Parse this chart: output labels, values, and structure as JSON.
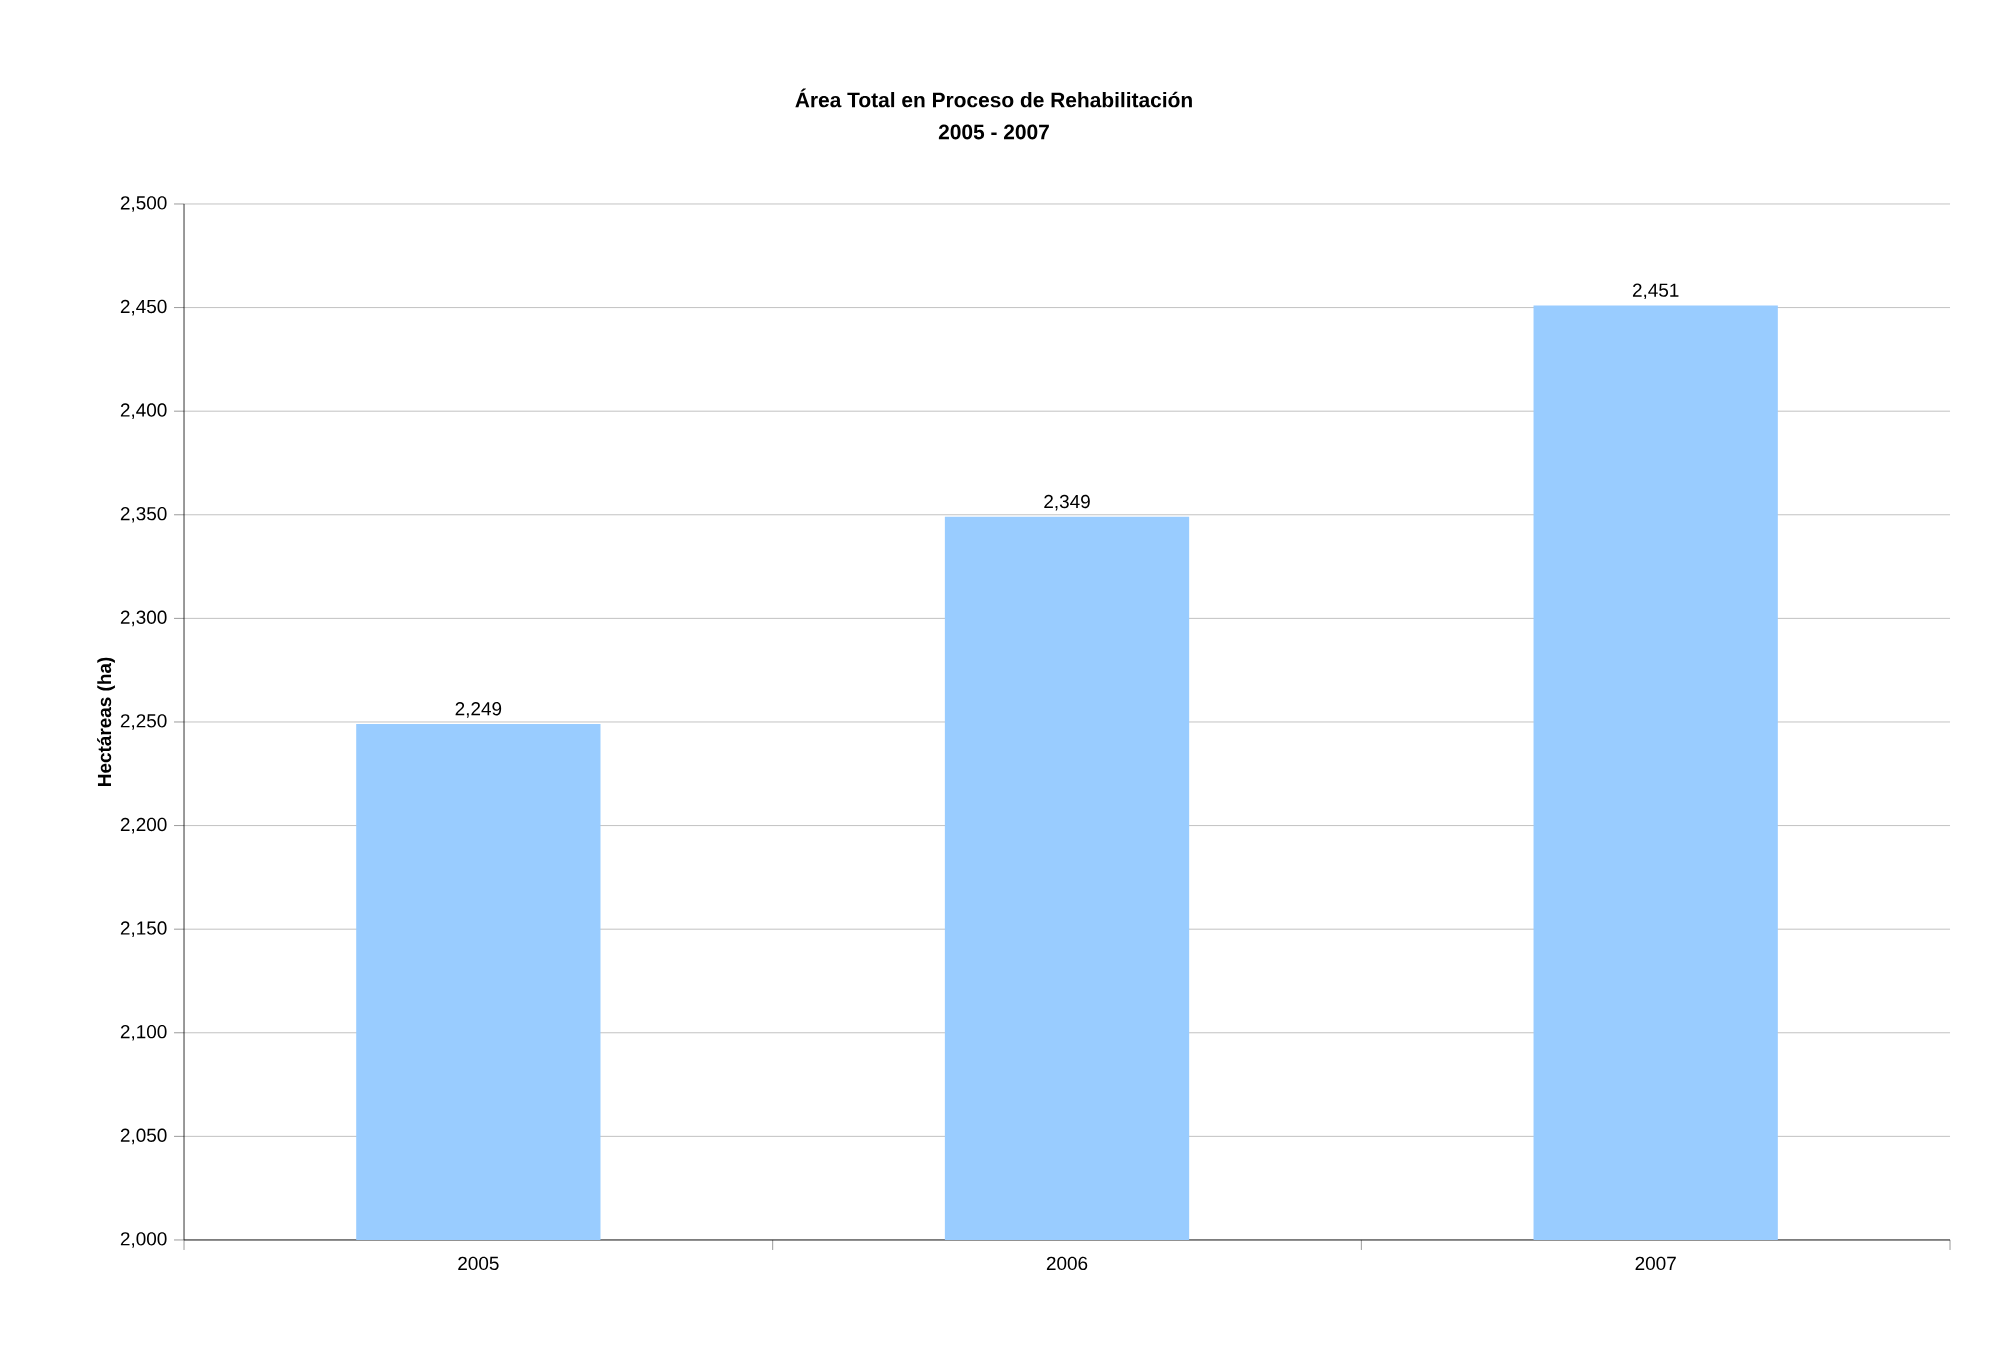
{
  "chart_data": {
    "type": "bar",
    "title": "Área Total en Proceso de Rehabilitación",
    "subtitle": "2005 - 2007",
    "ylabel": "Hectáreas (ha)",
    "categories": [
      "2005",
      "2006",
      "2007"
    ],
    "values": [
      2249,
      2349,
      2451
    ],
    "value_labels": [
      "2,249",
      "2,349",
      "2,451"
    ],
    "color": "#99ccff",
    "ylim": [
      2000,
      2500
    ],
    "yticks": [
      {
        "value": 2000,
        "label": "2,000"
      },
      {
        "value": 2050,
        "label": "2,050"
      },
      {
        "value": 2100,
        "label": "2,100"
      },
      {
        "value": 2150,
        "label": "2,150"
      },
      {
        "value": 2200,
        "label": "2,200"
      },
      {
        "value": 2250,
        "label": "2,250"
      },
      {
        "value": 2300,
        "label": "2,300"
      },
      {
        "value": 2350,
        "label": "2,350"
      },
      {
        "value": 2400,
        "label": "2,400"
      },
      {
        "value": 2450,
        "label": "2,450"
      },
      {
        "value": 2500,
        "label": "2,500"
      }
    ],
    "grid": "y"
  }
}
